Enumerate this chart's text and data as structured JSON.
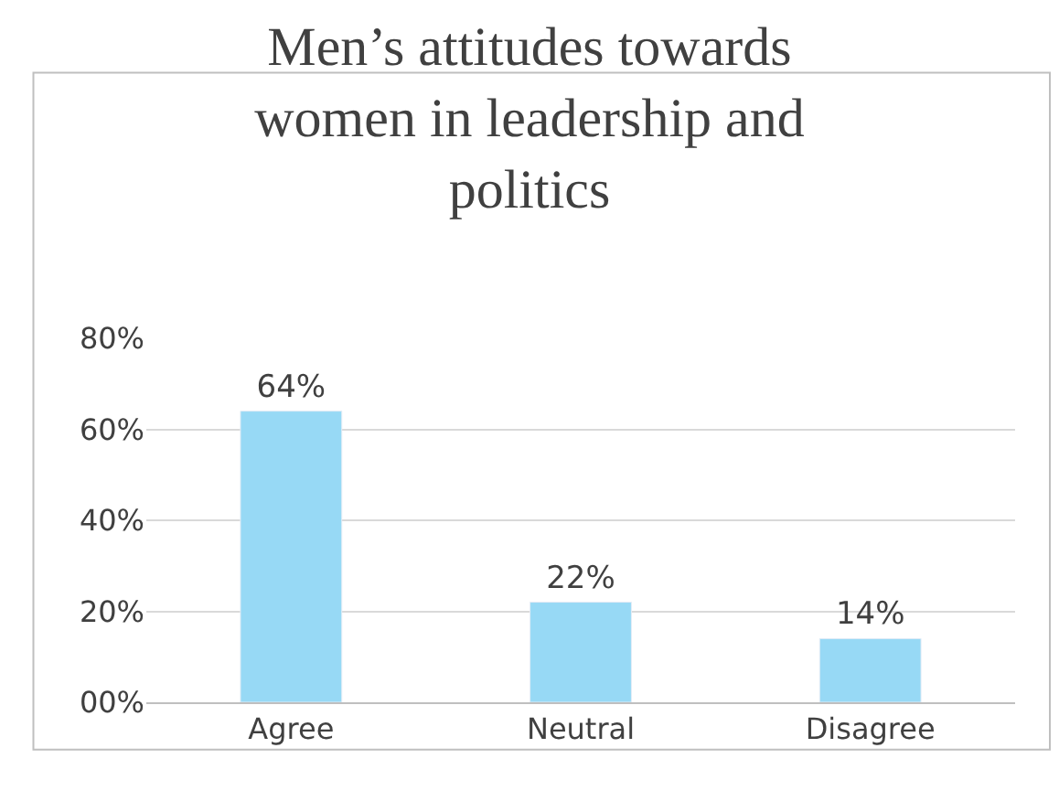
{
  "chart_data": {
    "type": "bar",
    "title": "Men’s attitudes towards women in leadership and politics",
    "categories": [
      "Agree",
      "Neutral",
      "Disagree"
    ],
    "values": [
      64,
      22,
      14
    ],
    "value_labels": [
      "64%",
      "22%",
      "14%"
    ],
    "color": "#97d9f5",
    "ylim": [
      0,
      80
    ],
    "yticks": [
      {
        "value": 0,
        "label": "00%"
      },
      {
        "value": 20,
        "label": "20%"
      },
      {
        "value": 40,
        "label": "40%"
      },
      {
        "value": 60,
        "label": "60%"
      },
      {
        "value": 80,
        "label": "80%"
      }
    ],
    "grid": "y",
    "legend": false
  }
}
